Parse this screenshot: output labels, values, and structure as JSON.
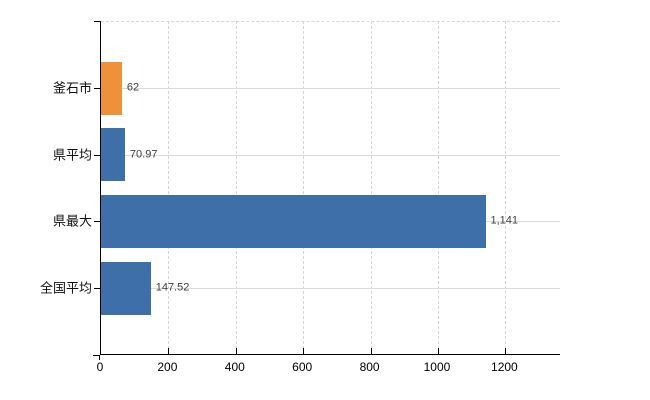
{
  "chart": {
    "background": "#ffffff",
    "axis_color": "#000000",
    "grid_color": "#d6d6d6"
  },
  "chart_data": {
    "type": "bar",
    "orientation": "horizontal",
    "title": "",
    "categories": [
      "釜石市",
      "県平均",
      "県最大",
      "全国平均"
    ],
    "values": [
      62,
      70.97,
      1141,
      147.52
    ],
    "value_labels": [
      "62",
      "70.97",
      "1,141",
      "147.52"
    ],
    "bar_colors": [
      "#ee9138",
      "#3e6fa9",
      "#3e6fa9",
      "#3e6fa9"
    ],
    "x_tick_values": [
      0,
      200,
      400,
      600,
      800,
      1000,
      1200
    ],
    "x_tick_labels": [
      "0",
      "200",
      "400",
      "600",
      "800",
      "1000",
      "1200"
    ],
    "xlim": [
      0,
      1365
    ],
    "grid": true,
    "legend": false
  }
}
